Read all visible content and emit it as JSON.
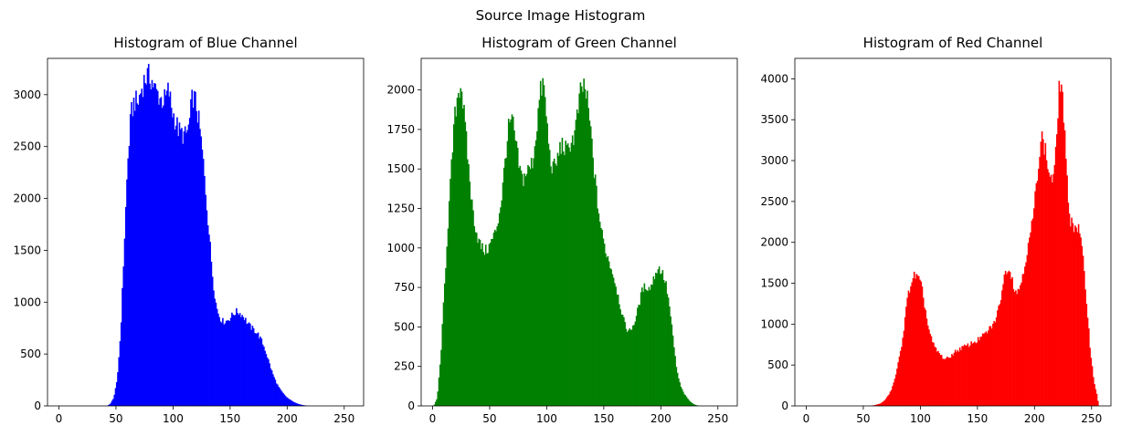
{
  "figure": {
    "title": "Source Image Histogram"
  },
  "chart_data": [
    {
      "type": "bar",
      "title": "Histogram of Blue Channel",
      "color": "#0000ff",
      "xlim": [
        -10,
        267
      ],
      "ylim": [
        0,
        3350
      ],
      "xticks": [
        0,
        50,
        100,
        150,
        200,
        250
      ],
      "yticks": [
        0,
        500,
        1000,
        1500,
        2000,
        2500,
        3000
      ],
      "xlabel": "",
      "ylabel": "",
      "anchors": [
        [
          42,
          0
        ],
        [
          45,
          20
        ],
        [
          48,
          80
        ],
        [
          51,
          250
        ],
        [
          54,
          700
        ],
        [
          57,
          1500
        ],
        [
          60,
          2300
        ],
        [
          63,
          2800
        ],
        [
          66,
          2950
        ],
        [
          69,
          2900
        ],
        [
          72,
          3050
        ],
        [
          75,
          3150
        ],
        [
          78,
          3180
        ],
        [
          81,
          3150
        ],
        [
          84,
          3050
        ],
        [
          87,
          3000
        ],
        [
          90,
          2950
        ],
        [
          93,
          2950
        ],
        [
          96,
          3050
        ],
        [
          99,
          2850
        ],
        [
          102,
          2750
        ],
        [
          105,
          2650
        ],
        [
          108,
          2620
        ],
        [
          111,
          2600
        ],
        [
          114,
          2700
        ],
        [
          117,
          3000
        ],
        [
          120,
          2920
        ],
        [
          123,
          2700
        ],
        [
          126,
          2400
        ],
        [
          129,
          2000
        ],
        [
          132,
          1600
        ],
        [
          135,
          1200
        ],
        [
          138,
          950
        ],
        [
          141,
          850
        ],
        [
          144,
          810
        ],
        [
          147,
          820
        ],
        [
          150,
          850
        ],
        [
          153,
          890
        ],
        [
          156,
          910
        ],
        [
          159,
          890
        ],
        [
          162,
          860
        ],
        [
          165,
          800
        ],
        [
          168,
          760
        ],
        [
          171,
          730
        ],
        [
          174,
          700
        ],
        [
          177,
          640
        ],
        [
          180,
          560
        ],
        [
          183,
          460
        ],
        [
          186,
          350
        ],
        [
          189,
          260
        ],
        [
          192,
          190
        ],
        [
          195,
          140
        ],
        [
          198,
          100
        ],
        [
          201,
          70
        ],
        [
          204,
          50
        ],
        [
          207,
          30
        ],
        [
          210,
          18
        ],
        [
          213,
          10
        ],
        [
          216,
          4
        ],
        [
          219,
          0
        ]
      ]
    },
    {
      "type": "bar",
      "title": "Histogram of Green Channel",
      "color": "#008000",
      "xlim": [
        -10,
        267
      ],
      "ylim": [
        0,
        2200
      ],
      "xticks": [
        0,
        50,
        100,
        150,
        200,
        250
      ],
      "yticks": [
        0,
        250,
        500,
        750,
        1000,
        1250,
        1500,
        1750,
        2000
      ],
      "xlabel": "",
      "ylabel": "",
      "anchors": [
        [
          1,
          0
        ],
        [
          4,
          50
        ],
        [
          7,
          300
        ],
        [
          10,
          700
        ],
        [
          13,
          1100
        ],
        [
          16,
          1450
        ],
        [
          19,
          1800
        ],
        [
          22,
          1980
        ],
        [
          25,
          2050
        ],
        [
          28,
          1800
        ],
        [
          31,
          1550
        ],
        [
          34,
          1300
        ],
        [
          37,
          1150
        ],
        [
          40,
          1050
        ],
        [
          43,
          1000
        ],
        [
          46,
          980
        ],
        [
          49,
          1000
        ],
        [
          52,
          1050
        ],
        [
          55,
          1100
        ],
        [
          58,
          1200
        ],
        [
          61,
          1350
        ],
        [
          64,
          1600
        ],
        [
          67,
          1780
        ],
        [
          70,
          1800
        ],
        [
          73,
          1650
        ],
        [
          76,
          1500
        ],
        [
          79,
          1430
        ],
        [
          82,
          1480
        ],
        [
          85,
          1500
        ],
        [
          88,
          1560
        ],
        [
          91,
          1750
        ],
        [
          94,
          1970
        ],
        [
          97,
          2050
        ],
        [
          100,
          1800
        ],
        [
          103,
          1550
        ],
        [
          106,
          1500
        ],
        [
          109,
          1550
        ],
        [
          112,
          1650
        ],
        [
          115,
          1640
        ],
        [
          118,
          1600
        ],
        [
          121,
          1680
        ],
        [
          124,
          1700
        ],
        [
          127,
          1850
        ],
        [
          130,
          2000
        ],
        [
          133,
          2030
        ],
        [
          136,
          1900
        ],
        [
          139,
          1700
        ],
        [
          142,
          1450
        ],
        [
          145,
          1250
        ],
        [
          148,
          1100
        ],
        [
          151,
          1000
        ],
        [
          154,
          930
        ],
        [
          157,
          860
        ],
        [
          160,
          780
        ],
        [
          163,
          680
        ],
        [
          166,
          580
        ],
        [
          169,
          500
        ],
        [
          172,
          470
        ],
        [
          175,
          500
        ],
        [
          178,
          550
        ],
        [
          181,
          650
        ],
        [
          184,
          740
        ],
        [
          187,
          760
        ],
        [
          190,
          740
        ],
        [
          193,
          790
        ],
        [
          196,
          860
        ],
        [
          199,
          870
        ],
        [
          202,
          830
        ],
        [
          205,
          750
        ],
        [
          208,
          600
        ],
        [
          211,
          400
        ],
        [
          214,
          220
        ],
        [
          217,
          130
        ],
        [
          220,
          80
        ],
        [
          223,
          50
        ],
        [
          226,
          25
        ],
        [
          229,
          10
        ],
        [
          232,
          3
        ],
        [
          235,
          0
        ]
      ]
    },
    {
      "type": "bar",
      "title": "Histogram of Red Channel",
      "color": "#ff0000",
      "xlim": [
        -10,
        267
      ],
      "ylim": [
        0,
        4250
      ],
      "xticks": [
        0,
        50,
        100,
        150,
        200,
        250
      ],
      "yticks": [
        0,
        500,
        1000,
        1500,
        2000,
        2500,
        3000,
        3500,
        4000
      ],
      "xlabel": "",
      "ylabel": "",
      "anchors": [
        [
          55,
          0
        ],
        [
          60,
          10
        ],
        [
          65,
          30
        ],
        [
          68,
          60
        ],
        [
          71,
          110
        ],
        [
          74,
          180
        ],
        [
          77,
          300
        ],
        [
          80,
          480
        ],
        [
          83,
          700
        ],
        [
          86,
          1000
        ],
        [
          89,
          1350
        ],
        [
          92,
          1520
        ],
        [
          95,
          1600
        ],
        [
          98,
          1560
        ],
        [
          101,
          1450
        ],
        [
          104,
          1200
        ],
        [
          107,
          950
        ],
        [
          110,
          800
        ],
        [
          113,
          700
        ],
        [
          116,
          650
        ],
        [
          119,
          600
        ],
        [
          122,
          570
        ],
        [
          125,
          590
        ],
        [
          128,
          630
        ],
        [
          131,
          670
        ],
        [
          134,
          690
        ],
        [
          137,
          720
        ],
        [
          140,
          730
        ],
        [
          143,
          750
        ],
        [
          146,
          780
        ],
        [
          149,
          790
        ],
        [
          152,
          830
        ],
        [
          155,
          860
        ],
        [
          158,
          900
        ],
        [
          161,
          950
        ],
        [
          164,
          1000
        ],
        [
          167,
          1100
        ],
        [
          170,
          1300
        ],
        [
          173,
          1550
        ],
        [
          176,
          1700
        ],
        [
          179,
          1650
        ],
        [
          182,
          1450
        ],
        [
          185,
          1380
        ],
        [
          188,
          1500
        ],
        [
          191,
          1720
        ],
        [
          194,
          1900
        ],
        [
          197,
          2150
        ],
        [
          200,
          2450
        ],
        [
          203,
          2950
        ],
        [
          206,
          3300
        ],
        [
          209,
          3150
        ],
        [
          212,
          2900
        ],
        [
          215,
          2750
        ],
        [
          218,
          2900
        ],
        [
          221,
          3800
        ],
        [
          223,
          4000
        ],
        [
          225,
          3700
        ],
        [
          228,
          2800
        ],
        [
          231,
          2300
        ],
        [
          234,
          2200
        ],
        [
          237,
          2200
        ],
        [
          240,
          2100
        ],
        [
          243,
          1700
        ],
        [
          246,
          1200
        ],
        [
          249,
          650
        ],
        [
          252,
          300
        ],
        [
          255,
          120
        ],
        [
          256,
          0
        ]
      ]
    }
  ]
}
